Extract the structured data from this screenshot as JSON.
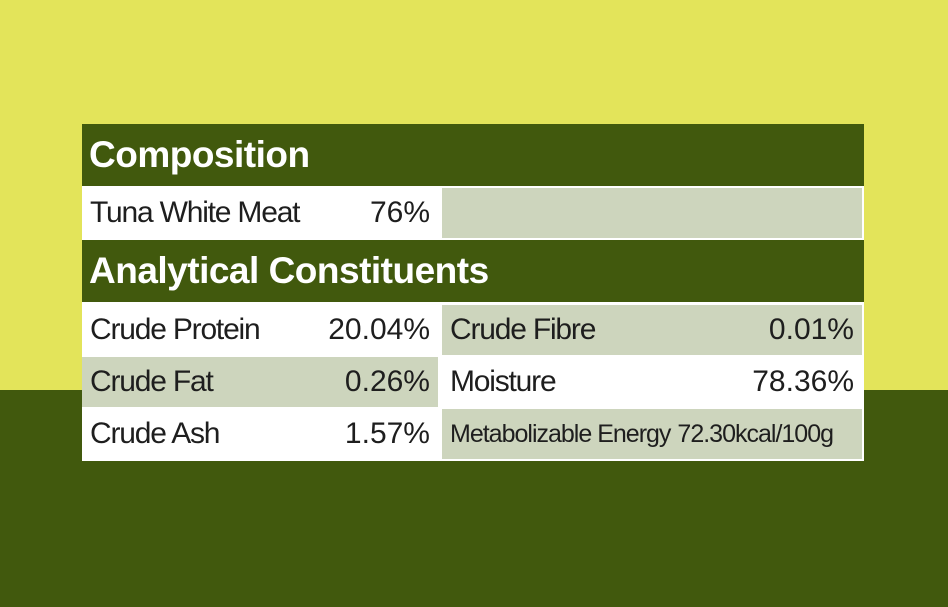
{
  "composition": {
    "title": "Composition",
    "items": [
      {
        "label": "Tuna White Meat",
        "value": "76%"
      }
    ]
  },
  "analytical": {
    "title": "Analytical Constituents",
    "items": [
      {
        "label": "Crude Protein",
        "value": "20.04%"
      },
      {
        "label": "Crude Fibre",
        "value": "0.01%"
      },
      {
        "label": "Crude Fat",
        "value": "0.26%"
      },
      {
        "label": "Moisture",
        "value": "78.36%"
      },
      {
        "label": "Crude Ash",
        "value": "1.57%"
      },
      {
        "label": "Metabolizable Energy",
        "value": "72.30kcal/100g"
      }
    ]
  },
  "colors": {
    "yellow": "#e3e45a",
    "dark_green": "#41590d",
    "shade": "#cdd5bd"
  }
}
